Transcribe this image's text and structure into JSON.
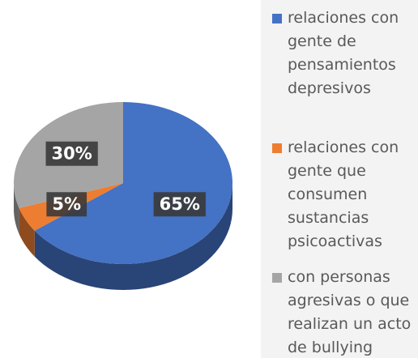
{
  "chart_data": {
    "type": "pie",
    "categories": [
      "relaciones con gente de pensamientos depresivos",
      "relaciones con gente que consumen sustancias psicoactivas",
      "con personas agresivas o que realizan un acto de bullying"
    ],
    "values": [
      65,
      5,
      30
    ],
    "value_labels": [
      "65%",
      "5%",
      "30%"
    ],
    "colors": [
      "#4472c4",
      "#ed7d31",
      "#a5a5a5"
    ],
    "legend": "right"
  }
}
